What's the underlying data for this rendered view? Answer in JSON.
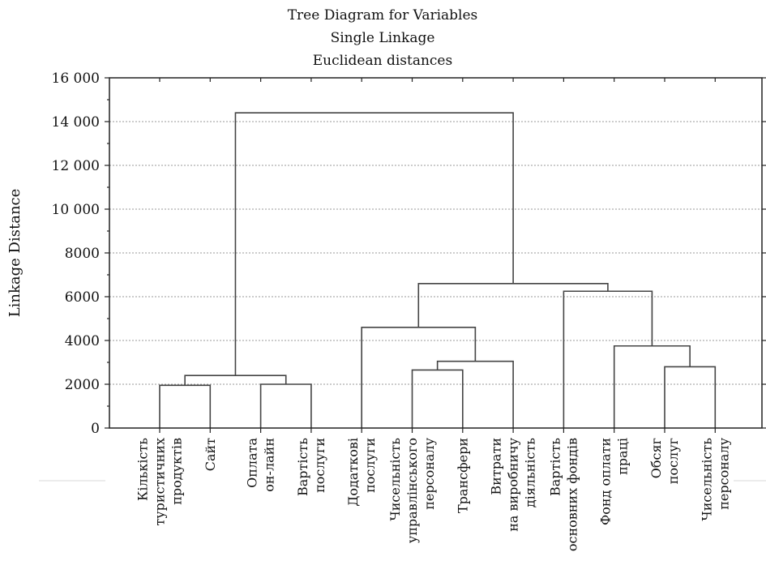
{
  "chart_data": {
    "type": "dendrogram",
    "title": [
      "Tree Diagram for Variables",
      "Single Linkage",
      "Euclidean distances"
    ],
    "ylabel": "Linkage Distance",
    "ylim": [
      0,
      16000
    ],
    "yticks": [
      0,
      2000,
      4000,
      6000,
      8000,
      10000,
      12000,
      14000,
      16000
    ],
    "ytick_labels": [
      "0",
      "2000",
      "4000",
      "6000",
      "8000",
      "10 000",
      "12 000",
      "14 000",
      "16 000"
    ],
    "grid": true,
    "leaves": [
      [
        "Кількість",
        "туристичних",
        "продуктів"
      ],
      [
        "Сайт"
      ],
      [
        "Оплата",
        "он-лайн"
      ],
      [
        "Вартість",
        "послуги"
      ],
      [
        "Додаткові",
        "послуги"
      ],
      [
        "Чисельність",
        "управлінського",
        "персоналу"
      ],
      [
        "Трансфери"
      ],
      [
        "Витрати",
        "на виробничу",
        "діяльність"
      ],
      [
        "Вартість",
        "основних фондів"
      ],
      [
        "Фонд оплати",
        "праці"
      ],
      [
        "Обсяг",
        "послуг"
      ],
      [
        "Чисельність",
        "персоналу"
      ]
    ],
    "merges": [
      {
        "left": 0,
        "right": 1,
        "distance": 1950
      },
      {
        "left": 2,
        "right": 3,
        "distance": 2000
      },
      {
        "left": "m0",
        "right": "m1",
        "distance": 2400
      },
      {
        "left": 10,
        "right": 11,
        "distance": 2800
      },
      {
        "left": 5,
        "right": 6,
        "distance": 2650
      },
      {
        "left": "m4",
        "right": 7,
        "distance": 3050
      },
      {
        "left": 9,
        "right": "m3",
        "distance": 3750
      },
      {
        "left": 4,
        "right": "m5",
        "distance": 4600
      },
      {
        "left": 8,
        "right": "m6",
        "distance": 6250
      },
      {
        "left": "m7",
        "right": "m8",
        "distance": 6600
      },
      {
        "left": "m2",
        "right": "m9",
        "distance": 14400
      }
    ]
  }
}
